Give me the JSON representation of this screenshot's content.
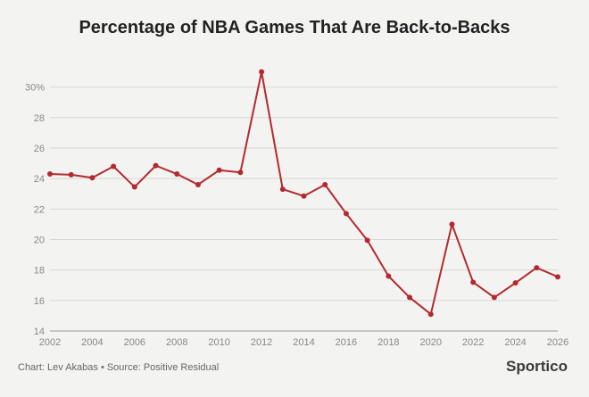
{
  "chart_data": {
    "type": "line",
    "title": "Percentage of NBA Games That Are Back-to-Backs",
    "xlabel": "",
    "ylabel": "",
    "x": [
      2002,
      2003,
      2004,
      2005,
      2006,
      2007,
      2008,
      2009,
      2010,
      2011,
      2012,
      2013,
      2014,
      2015,
      2016,
      2017,
      2018,
      2019,
      2020,
      2021,
      2022,
      2023,
      2024,
      2025,
      2026
    ],
    "values": [
      24.3,
      24.25,
      24.05,
      24.8,
      23.45,
      24.85,
      24.3,
      23.6,
      24.55,
      24.4,
      31.0,
      23.3,
      22.85,
      23.6,
      21.7,
      19.95,
      17.6,
      16.2,
      15.1,
      21.0,
      17.2,
      16.2,
      17.15,
      18.15,
      17.55
    ],
    "xticks": [
      "2002",
      "2004",
      "2006",
      "2008",
      "2010",
      "2012",
      "2014",
      "2016",
      "2018",
      "2020",
      "2022",
      "2024",
      "2026"
    ],
    "yticks": [
      "14",
      "16",
      "18",
      "20",
      "22",
      "24",
      "26",
      "28",
      "30%"
    ],
    "ylim": [
      14,
      31.5
    ],
    "xlim": [
      2002,
      2026
    ],
    "series_color": "#b22a2f",
    "grid": true
  },
  "footer": {
    "credit": "Chart: Lev Akabas • Source: Positive Residual",
    "brand": "Sportico"
  }
}
